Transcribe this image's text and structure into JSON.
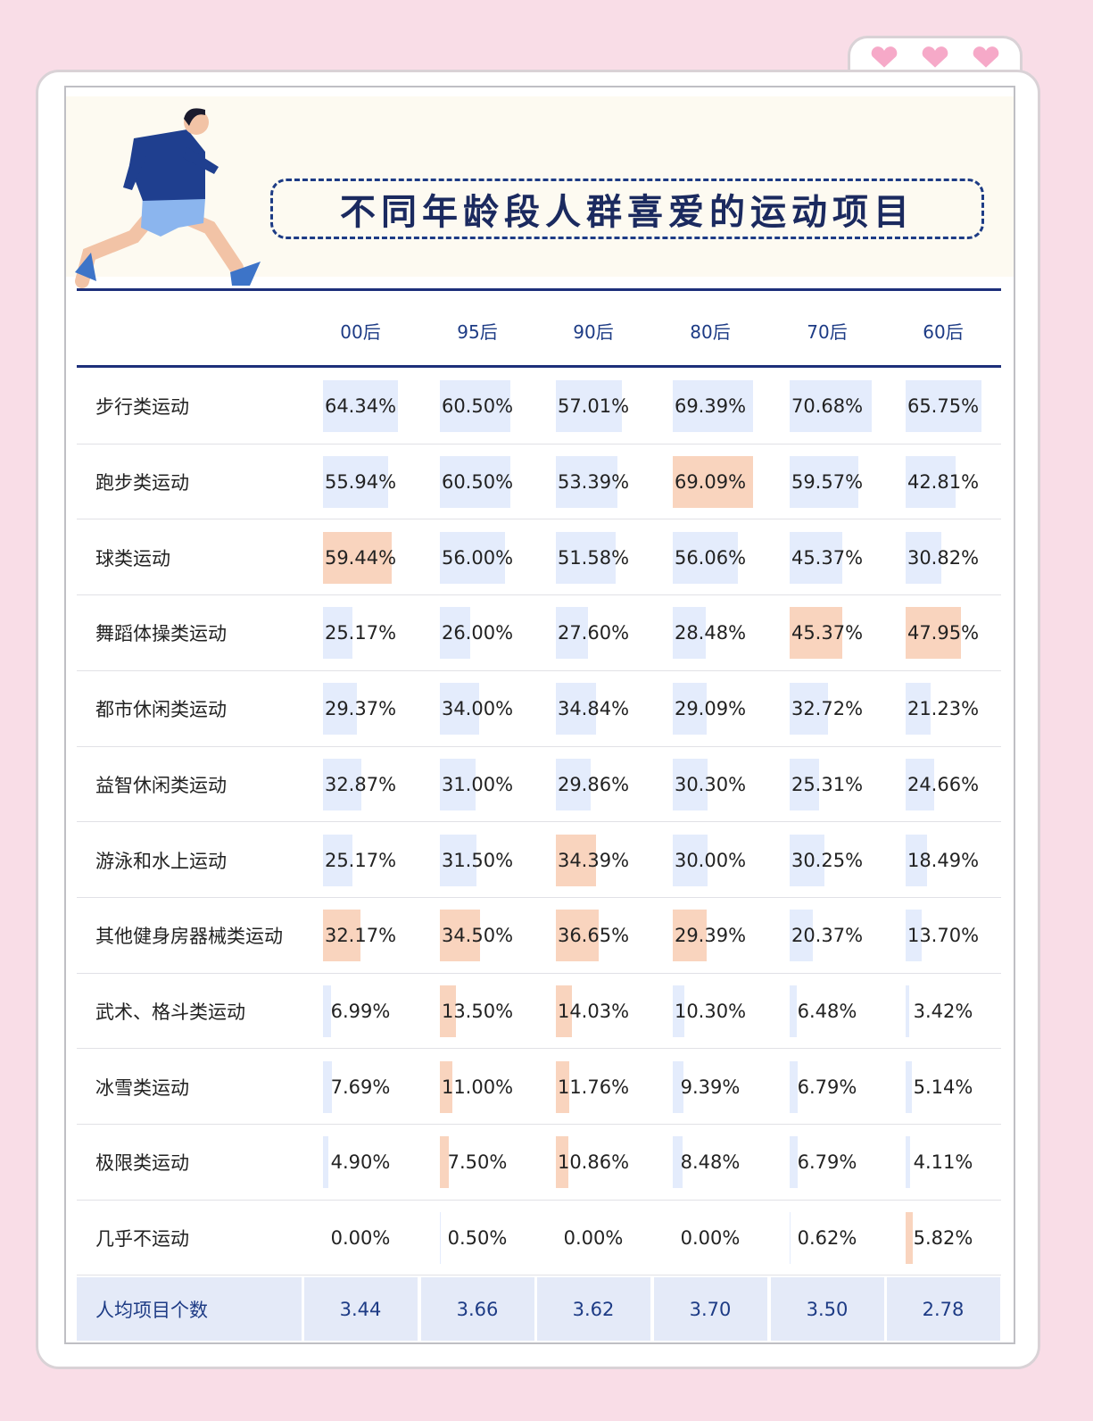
{
  "header": {
    "title": "不同年龄段人群喜爱的运动项目"
  },
  "table": {
    "columns": [
      "00后",
      "95后",
      "90后",
      "80后",
      "70后",
      "60后"
    ],
    "rows": [
      {
        "label": "步行类运动",
        "values": [
          "64.34%",
          "60.50%",
          "57.01%",
          "69.39%",
          "70.68%",
          "65.75%"
        ],
        "highlight": []
      },
      {
        "label": "跑步类运动",
        "values": [
          "55.94%",
          "60.50%",
          "53.39%",
          "69.09%",
          "59.57%",
          "42.81%"
        ],
        "highlight": [
          3
        ]
      },
      {
        "label": "球类运动",
        "values": [
          "59.44%",
          "56.00%",
          "51.58%",
          "56.06%",
          "45.37%",
          "30.82%"
        ],
        "highlight": [
          0
        ]
      },
      {
        "label": "舞蹈体操类运动",
        "values": [
          "25.17%",
          "26.00%",
          "27.60%",
          "28.48%",
          "45.37%",
          "47.95%"
        ],
        "highlight": [
          4,
          5
        ]
      },
      {
        "label": "都市休闲类运动",
        "values": [
          "29.37%",
          "34.00%",
          "34.84%",
          "29.09%",
          "32.72%",
          "21.23%"
        ],
        "highlight": []
      },
      {
        "label": "益智休闲类运动",
        "values": [
          "32.87%",
          "31.00%",
          "29.86%",
          "30.30%",
          "25.31%",
          "24.66%"
        ],
        "highlight": []
      },
      {
        "label": "游泳和水上运动",
        "values": [
          "25.17%",
          "31.50%",
          "34.39%",
          "30.00%",
          "30.25%",
          "18.49%"
        ],
        "highlight": [
          2
        ]
      },
      {
        "label": "其他健身房器械类运动",
        "values": [
          "32.17%",
          "34.50%",
          "36.65%",
          "29.39%",
          "20.37%",
          "13.70%"
        ],
        "highlight": [
          0,
          1,
          2,
          3
        ]
      },
      {
        "label": "武术、格斗类运动",
        "values": [
          "6.99%",
          "13.50%",
          "14.03%",
          "10.30%",
          "6.48%",
          "3.42%"
        ],
        "highlight": [
          1,
          2
        ]
      },
      {
        "label": "冰雪类运动",
        "values": [
          "7.69%",
          "11.00%",
          "11.76%",
          "9.39%",
          "6.79%",
          "5.14%"
        ],
        "highlight": [
          1,
          2
        ]
      },
      {
        "label": "极限类运动",
        "values": [
          "4.90%",
          "7.50%",
          "10.86%",
          "8.48%",
          "6.79%",
          "4.11%"
        ],
        "highlight": [
          1,
          2
        ]
      },
      {
        "label": "几乎不运动",
        "values": [
          "0.00%",
          "0.50%",
          "0.00%",
          "0.00%",
          "0.62%",
          "5.82%"
        ],
        "highlight": [
          5
        ]
      }
    ],
    "summary": {
      "label": "人均项目个数",
      "values": [
        "3.44",
        "3.66",
        "3.62",
        "3.70",
        "3.50",
        "2.78"
      ]
    }
  },
  "colors": {
    "bar": "#e4ecfc",
    "highlight": "#f9d4be"
  }
}
